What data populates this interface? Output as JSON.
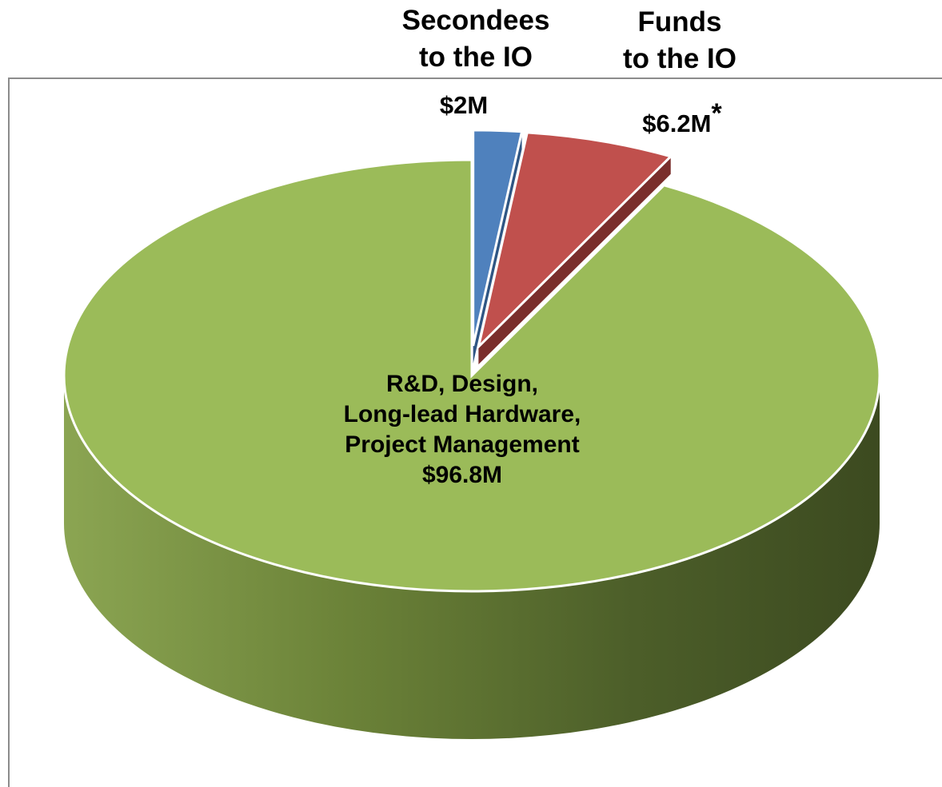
{
  "header": {
    "secondees": [
      "Secondees",
      "to the IO"
    ],
    "funds": [
      "Funds",
      "to the IO"
    ]
  },
  "colors": {
    "green": "#9bbb59",
    "red": "#c0504d",
    "blue": "#4f81bd"
  },
  "chart_data": {
    "type": "pie",
    "style": "3d-exploded",
    "title": "",
    "slices": [
      {
        "category": "Secondees to the IO",
        "value": 2,
        "label_lines": [
          "$2M"
        ],
        "color": "#4f81bd",
        "exploded": true
      },
      {
        "category": "Funds to the IO",
        "value": 6.2,
        "label_lines": [
          "$6.2M*"
        ],
        "color": "#c0504d",
        "exploded": true
      },
      {
        "category": "R&D, Design, Long-lead Hardware, Project Management",
        "value": 96.8,
        "label_lines": [
          "R&D, Design,",
          "Long-lead Hardware,",
          "Project Management",
          "$96.8M"
        ],
        "color": "#9bbb59",
        "exploded": false
      }
    ],
    "units": "$M"
  }
}
